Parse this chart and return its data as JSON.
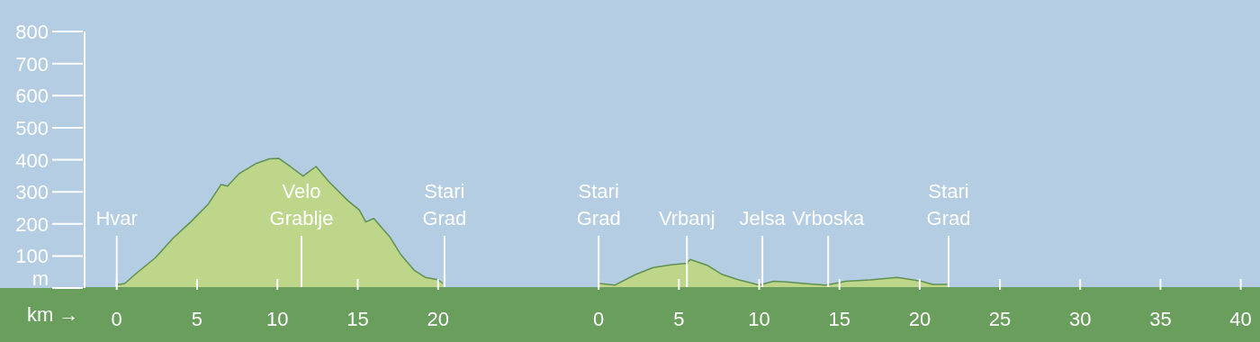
{
  "chart_data": [
    {
      "type": "area",
      "xlabel": "km →",
      "xlim": [
        -2,
        25
      ],
      "xticks": [
        0,
        5,
        10,
        15,
        20
      ],
      "ylim": [
        0,
        800
      ],
      "yticks": [
        {
          "value": 0,
          "label": "m"
        },
        100,
        200,
        300,
        400,
        500,
        600,
        700,
        800
      ],
      "series": [
        {
          "color": "#bdd68a",
          "x": [
            0,
            0.5,
            1.25,
            2.4,
            3.5,
            4.6,
            5.7,
            6.5,
            6.9,
            7.6,
            8.7,
            9.5,
            10.1,
            10.8,
            11.6,
            12.4,
            13.2,
            14.4,
            15.1,
            15.5,
            16,
            17,
            17.7,
            18.5,
            19.2,
            20,
            20.3
          ],
          "values": [
            10,
            14,
            47,
            94,
            155,
            206,
            262,
            323,
            318,
            356,
            389,
            403,
            404,
            379,
            349,
            379,
            332,
            272,
            243,
            206,
            217,
            159,
            103,
            56,
            33,
            26,
            14
          ]
        }
      ],
      "ref_lines": [
        {
          "axis": "x",
          "value": 0,
          "label": "Hvar"
        },
        {
          "axis": "x",
          "value": 11.5,
          "label": "Velo Grablje"
        },
        {
          "axis": "x",
          "value": 20.4,
          "label": "Stari Grad"
        }
      ]
    },
    {
      "type": "area",
      "xlim": [
        -5,
        41.2
      ],
      "xticks": [
        0,
        5,
        10,
        15,
        20,
        25,
        30,
        35,
        40
      ],
      "ylim": [
        0,
        800
      ],
      "tick_labels": "x",
      "series": [
        {
          "color": "#bdd68a",
          "x": [
            0.05,
            1,
            2.3,
            3.4,
            4.5,
            5.5,
            5.7,
            6.8,
            7.7,
            8.7,
            10,
            10.9,
            11.7,
            12.8,
            14.1,
            14.7,
            15.4,
            16.9,
            18.6,
            20.1,
            20.8,
            21.7
          ],
          "values": [
            14,
            9,
            42,
            64,
            72,
            77,
            89,
            70,
            42,
            26,
            9,
            21,
            19,
            14,
            9,
            14,
            21,
            25,
            33,
            21,
            11,
            11
          ]
        }
      ],
      "ref_lines": [
        {
          "axis": "x",
          "value": 0,
          "label": "Stari Grad"
        },
        {
          "axis": "x",
          "value": 5.5,
          "label": "Vrbanj"
        },
        {
          "axis": "x",
          "value": 10.2,
          "label": "Jelsa"
        },
        {
          "axis": "x",
          "value": 14.3,
          "label": "Vrboska"
        },
        {
          "axis": "x",
          "value": 21.8,
          "label": "Stari Grad"
        }
      ]
    }
  ]
}
